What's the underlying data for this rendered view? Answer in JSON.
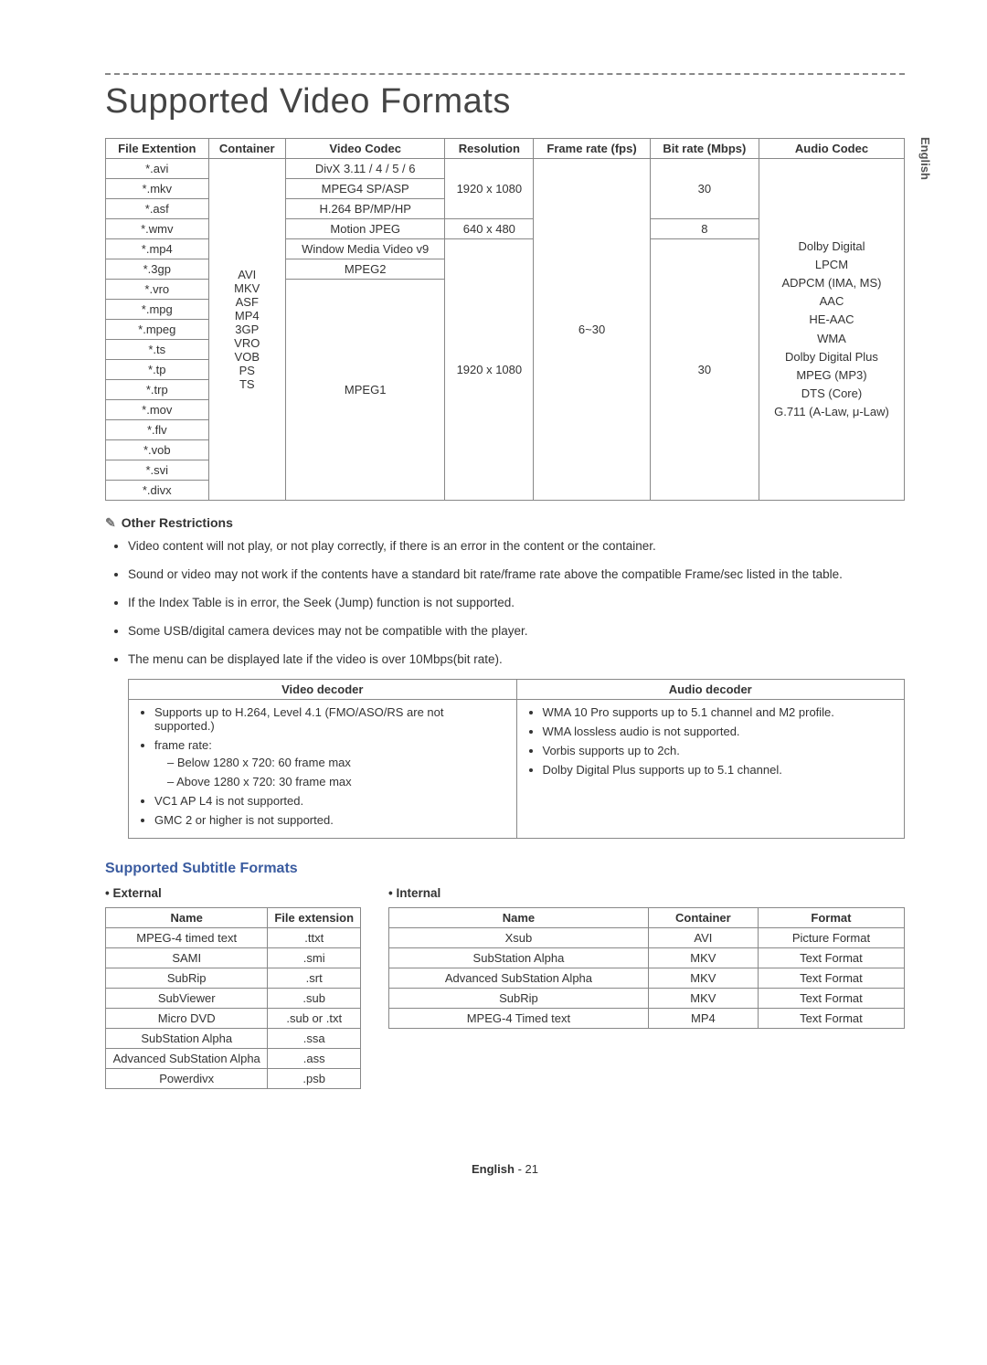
{
  "lang_tab": "English",
  "title": "Supported Video Formats",
  "main_table": {
    "headers": [
      "File Extention",
      "Container",
      "Video Codec",
      "Resolution",
      "Frame rate (fps)",
      "Bit rate (Mbps)",
      "Audio Codec"
    ],
    "extensions": [
      "*.avi",
      "*.mkv",
      "*.asf",
      "*.wmv",
      "*.mp4",
      "*.3gp",
      "*.vro",
      "*.mpg",
      "*.mpeg",
      "*.ts",
      "*.tp",
      "*.trp",
      "*.mov",
      "*.flv",
      "*.vob",
      "*.svi",
      "*.divx"
    ],
    "containers": [
      "AVI",
      "MKV",
      "ASF",
      "MP4",
      "3GP",
      "VRO",
      "VOB",
      "PS",
      "TS"
    ],
    "codec_rows": [
      {
        "codec": "DivX 3.11 / 4 / 5 / 6"
      },
      {
        "codec": "MPEG4 SP/ASP"
      },
      {
        "codec": "H.264 BP/MP/HP"
      },
      {
        "codec": "Motion JPEG"
      },
      {
        "codec": "Window Media Video v9"
      },
      {
        "codec": "MPEG2"
      },
      {
        "codec": "MPEG1"
      }
    ],
    "res_1": "1920 x 1080",
    "res_2": "640 x 480",
    "res_3": "1920 x 1080",
    "fps": "6~30",
    "bitrate_1": "30",
    "bitrate_2": "8",
    "bitrate_3": "30",
    "audio_codecs": "Dolby Digital\nLPCM\nADPCM (IMA, MS)\nAAC\nHE-AAC\nWMA\nDolby Digital Plus\nMPEG (MP3)\nDTS (Core)\nG.711 (A-Law, μ-Law)"
  },
  "restrictions": {
    "header": "Other Restrictions",
    "items": [
      "Video content will not play, or not play correctly, if there is an error in the content or the container.",
      "Sound or video may not work if the contents have a standard bit rate/frame rate above the compatible Frame/sec listed in the table.",
      "If the Index Table is in error, the Seek (Jump) function is not supported.",
      "Some USB/digital camera devices may not be compatible with the player.",
      "The menu can be displayed late if the video is over 10Mbps(bit rate)."
    ]
  },
  "decoder_table": {
    "headers": [
      "Video decoder",
      "Audio decoder"
    ],
    "video": {
      "b1": "Supports up to H.264, Level 4.1 (FMO/ASO/RS are not supported.)",
      "b2": "frame rate:",
      "b2a": "Below 1280 x 720: 60 frame max",
      "b2b": "Above 1280 x 720: 30 frame max",
      "b3": "VC1 AP L4 is not supported.",
      "b4": "GMC 2 or higher is not supported."
    },
    "audio": {
      "b1": "WMA 10 Pro supports up to 5.1 channel and M2 profile.",
      "b2": "WMA lossless audio is not supported.",
      "b3": "Vorbis supports up to 2ch.",
      "b4": "Dolby Digital Plus supports up to 5.1 channel."
    }
  },
  "subtitle_section_title": "Supported Subtitle Formats",
  "external": {
    "label": "External",
    "headers": [
      "Name",
      "File extension"
    ],
    "rows": [
      [
        "MPEG-4 timed text",
        ".ttxt"
      ],
      [
        "SAMI",
        ".smi"
      ],
      [
        "SubRip",
        ".srt"
      ],
      [
        "SubViewer",
        ".sub"
      ],
      [
        "Micro DVD",
        ".sub or .txt"
      ],
      [
        "SubStation Alpha",
        ".ssa"
      ],
      [
        "Advanced SubStation Alpha",
        ".ass"
      ],
      [
        "Powerdivx",
        ".psb"
      ]
    ]
  },
  "internal": {
    "label": "Internal",
    "headers": [
      "Name",
      "Container",
      "Format"
    ],
    "rows": [
      [
        "Xsub",
        "AVI",
        "Picture Format"
      ],
      [
        "SubStation Alpha",
        "MKV",
        "Text Format"
      ],
      [
        "Advanced SubStation Alpha",
        "MKV",
        "Text Format"
      ],
      [
        "SubRip",
        "MKV",
        "Text Format"
      ],
      [
        "MPEG-4 Timed text",
        "MP4",
        "Text Format"
      ]
    ]
  },
  "page_num_lang": "English",
  "page_num_no": "- 21"
}
